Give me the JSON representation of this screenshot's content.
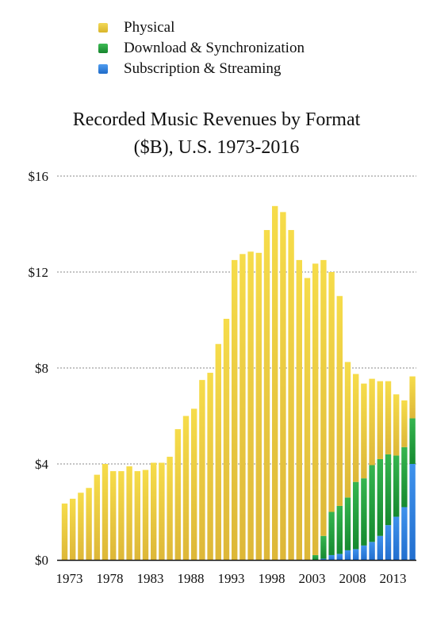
{
  "chart_data": {
    "type": "bar",
    "stacked": true,
    "title_line1": "Recorded Music Revenues by Format",
    "title_line2": "($B), U.S. 1973-2016",
    "years": [
      1973,
      1974,
      1975,
      1976,
      1977,
      1978,
      1979,
      1980,
      1981,
      1982,
      1983,
      1984,
      1985,
      1986,
      1987,
      1988,
      1989,
      1990,
      1991,
      1992,
      1993,
      1994,
      1995,
      1996,
      1997,
      1998,
      1999,
      2000,
      2001,
      2002,
      2003,
      2004,
      2005,
      2006,
      2007,
      2008,
      2009,
      2010,
      2011,
      2012,
      2013,
      2014,
      2015,
      2016
    ],
    "x_tick_labels": [
      "1973",
      "1978",
      "1983",
      "1988",
      "1993",
      "1998",
      "2003",
      "2008",
      "2013"
    ],
    "y_ticks": [
      {
        "value": 0,
        "label": "$0"
      },
      {
        "value": 4,
        "label": "$4"
      },
      {
        "value": 8,
        "label": "$8"
      },
      {
        "value": 12,
        "label": "$12"
      },
      {
        "value": 16,
        "label": "$16"
      }
    ],
    "ylim": [
      0,
      16
    ],
    "grid": true,
    "series": [
      {
        "name": "Subscription & Streaming",
        "color": "#2f7fdc",
        "values": [
          0,
          0,
          0,
          0,
          0,
          0,
          0,
          0,
          0,
          0,
          0,
          0,
          0,
          0,
          0,
          0,
          0,
          0,
          0,
          0,
          0,
          0,
          0,
          0,
          0,
          0,
          0,
          0,
          0,
          0,
          0,
          0,
          0.05,
          0.2,
          0.25,
          0.4,
          0.45,
          0.6,
          0.75,
          1.0,
          1.45,
          1.8,
          2.2,
          4.0
        ]
      },
      {
        "name": "Download & Synchronization",
        "color": "#1f9d3a",
        "values": [
          0,
          0,
          0,
          0,
          0,
          0,
          0,
          0,
          0,
          0,
          0,
          0,
          0,
          0,
          0,
          0,
          0,
          0,
          0,
          0,
          0,
          0,
          0,
          0,
          0,
          0,
          0,
          0,
          0,
          0,
          0,
          0.2,
          0.95,
          1.8,
          2.0,
          2.2,
          2.8,
          2.8,
          3.2,
          3.2,
          2.95,
          2.55,
          2.5,
          1.9
        ]
      },
      {
        "name": "Physical",
        "color": "#e6c535",
        "values": [
          2.35,
          2.55,
          2.8,
          3.0,
          3.55,
          4.0,
          3.7,
          3.7,
          3.9,
          3.7,
          3.75,
          4.05,
          4.05,
          4.3,
          5.45,
          6.0,
          6.3,
          7.5,
          7.8,
          9.0,
          10.05,
          12.5,
          12.75,
          12.85,
          12.8,
          13.75,
          14.75,
          14.5,
          13.75,
          12.5,
          11.75,
          12.15,
          11.5,
          10.0,
          8.75,
          5.65,
          4.5,
          3.95,
          3.6,
          3.25,
          3.05,
          2.55,
          1.95,
          1.75
        ]
      }
    ],
    "legend": {
      "position": "top-left",
      "entries": [
        "Physical",
        "Download & Synchronization",
        "Subscription & Streaming"
      ]
    }
  }
}
